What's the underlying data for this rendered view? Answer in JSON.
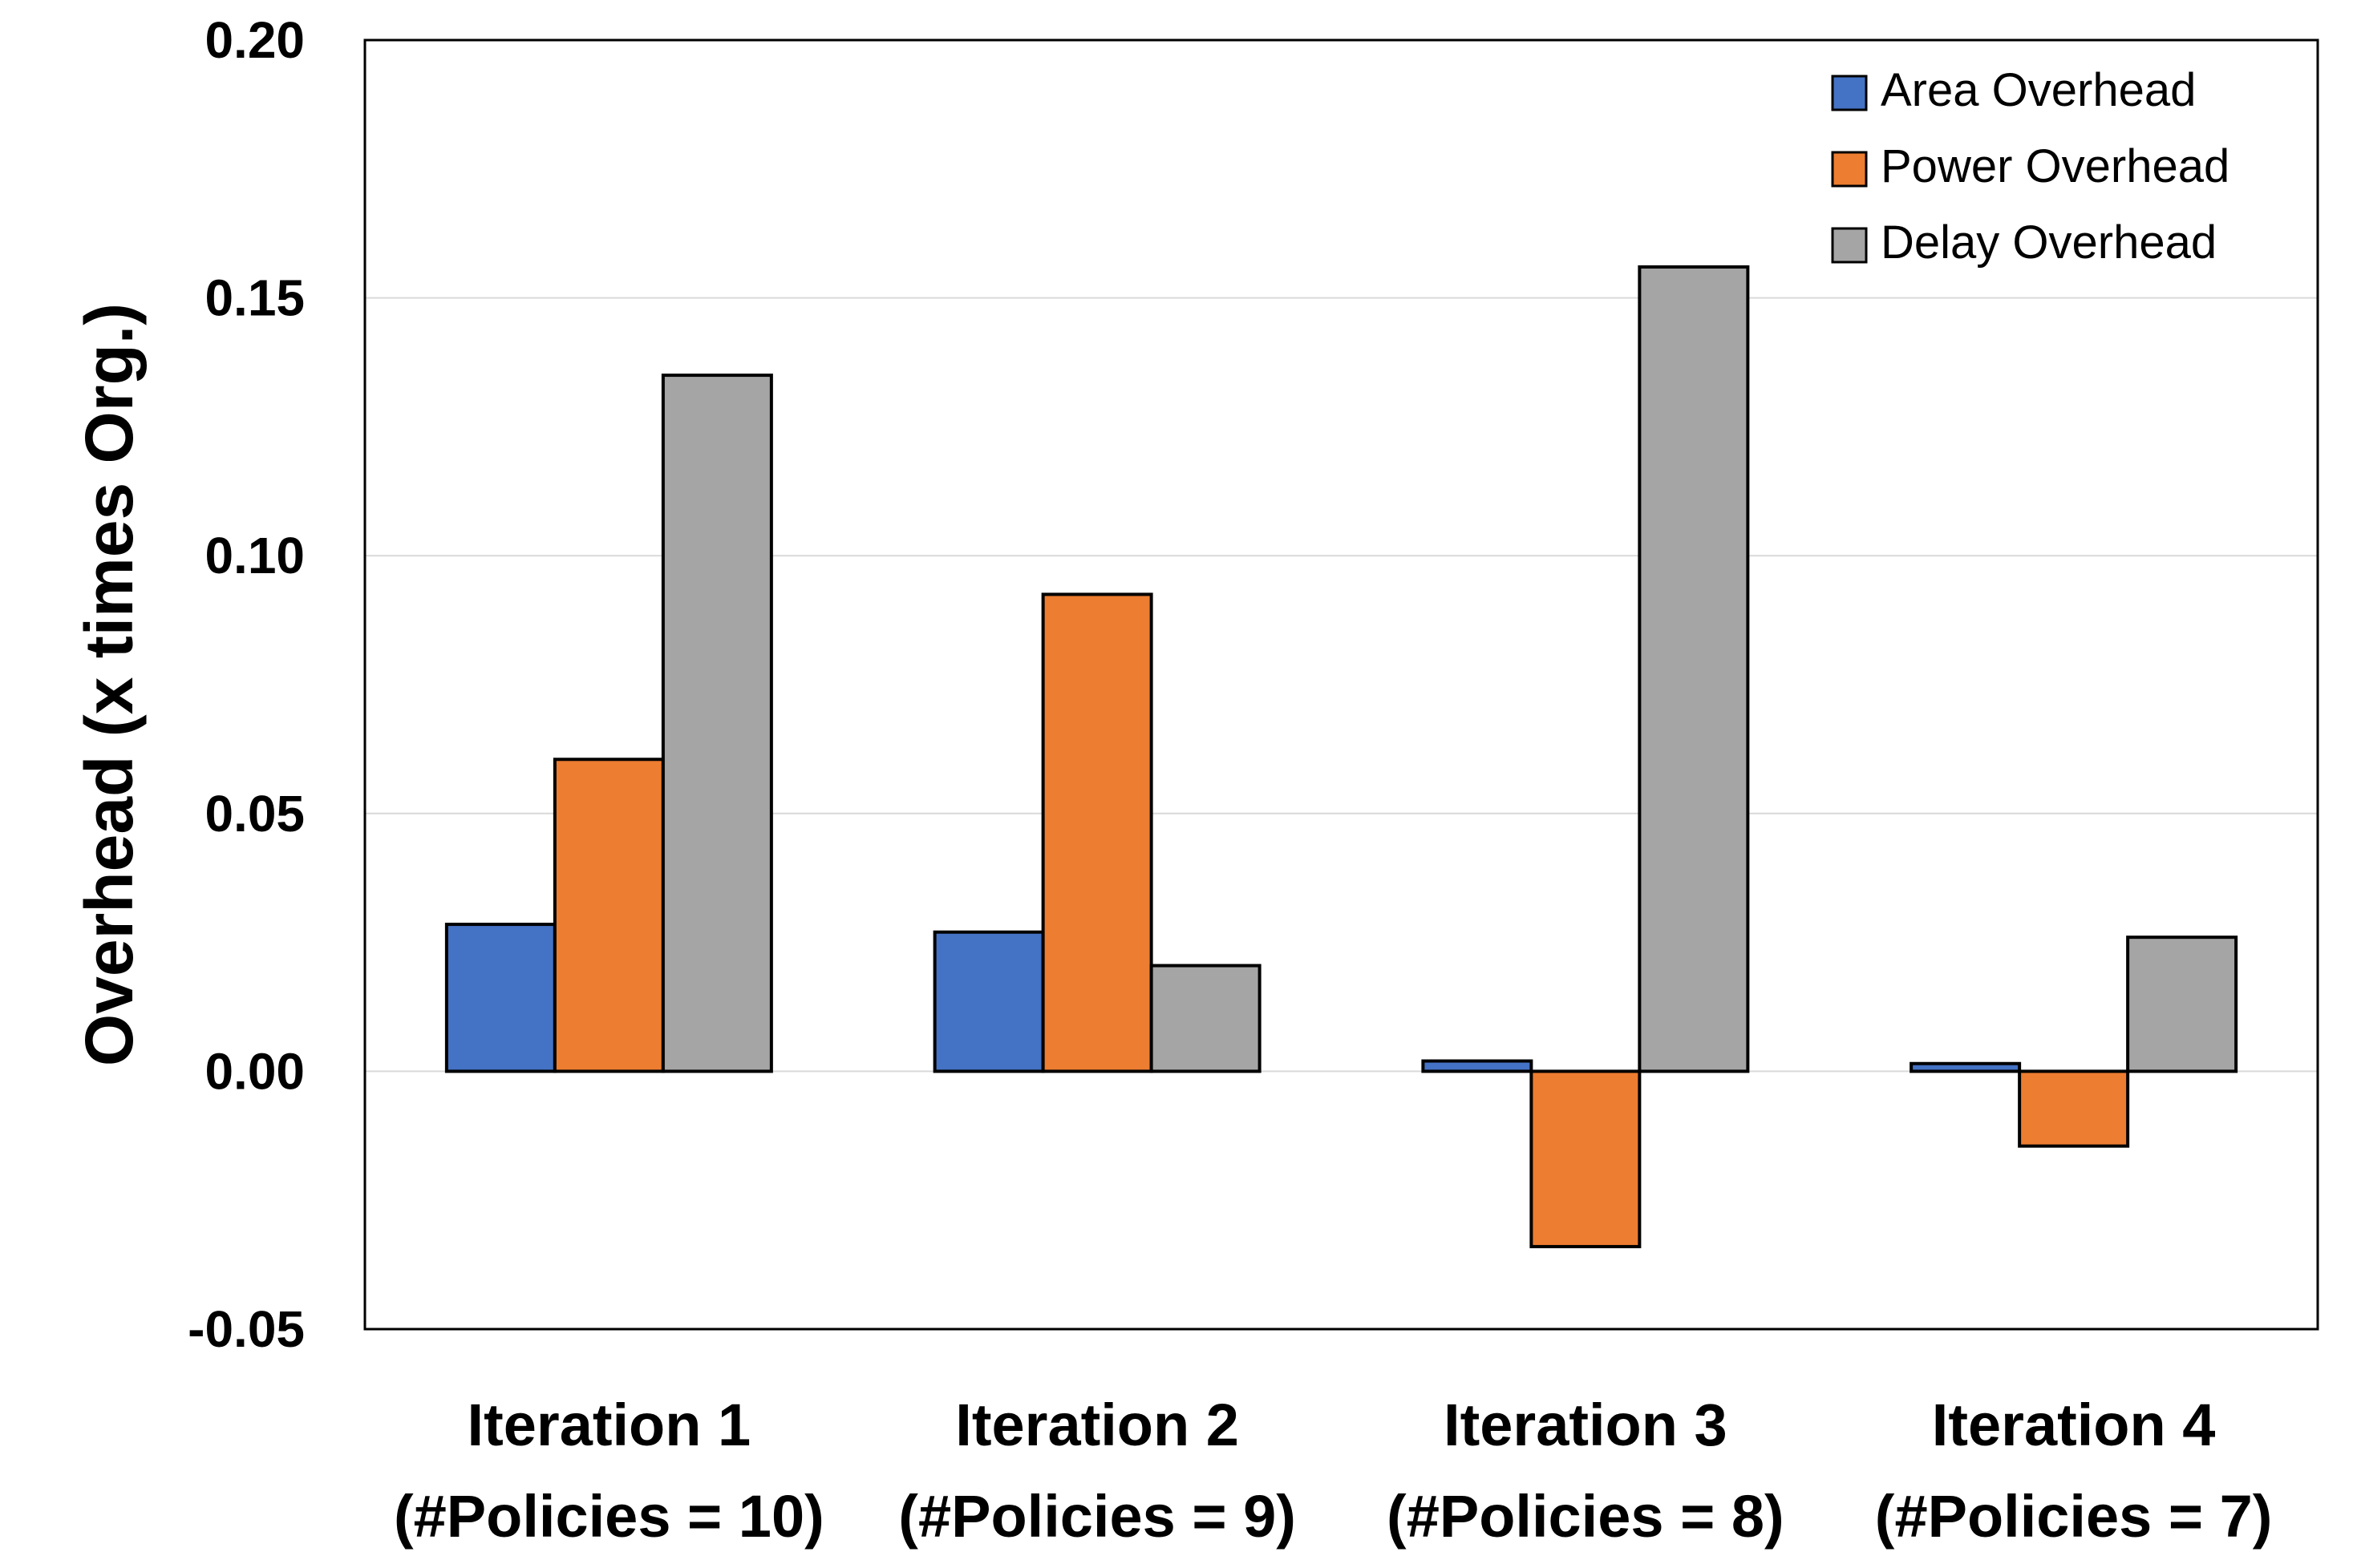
{
  "chart_data": {
    "type": "bar",
    "ylabel": "Overhead (x times Org.)",
    "ylim": [
      -0.05,
      0.2
    ],
    "yticks": [
      -0.05,
      0.0,
      0.05,
      0.1,
      0.15,
      0.2
    ],
    "ytick_labels": [
      "-0.05",
      "0.00",
      "0.05",
      "0.10",
      "0.15",
      "0.20"
    ],
    "grid": true,
    "legend_position": "top-right",
    "categories": [
      {
        "line1": "Iteration 1",
        "line2": "(#Policies = 10)"
      },
      {
        "line1": "Iteration 2",
        "line2": "(#Policies = 9)"
      },
      {
        "line1": "Iteration 3",
        "line2": "(#Policies = 8)"
      },
      {
        "line1": "Iteration 4",
        "line2": "(#Policies = 7)"
      }
    ],
    "series": [
      {
        "name": "Area Overhead",
        "color": "#4472c4",
        "values": [
          0.0285,
          0.027,
          0.002,
          0.0015
        ]
      },
      {
        "name": "Power Overhead",
        "color": "#ed7d31",
        "values": [
          0.0605,
          0.0925,
          -0.034,
          -0.0145
        ]
      },
      {
        "name": "Delay Overhead",
        "color": "#a5a5a5",
        "values": [
          0.135,
          0.0205,
          0.156,
          0.026
        ]
      }
    ]
  }
}
